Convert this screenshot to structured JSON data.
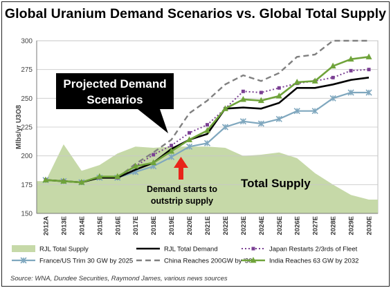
{
  "title": "Global Uranium Demand Scenarios vs. Global Total Supply",
  "source": "Source:  WNA, Dundee Securities, Raymond James, various news sources",
  "colors": {
    "supply_fill": "#c6d9a8",
    "demand": "#000000",
    "japan": "#7a3f93",
    "france": "#7fa7be",
    "china": "#808080",
    "india": "#6fa33a",
    "arrow": "#e8251a",
    "total_supply_label": "#3a8a1c",
    "callout_bg": "#000000"
  },
  "chart_data": {
    "type": "line",
    "title": "Global Uranium Demand Scenarios vs. Global Total Supply",
    "xlabel": "",
    "ylabel": "Mlbs/yr U3O8",
    "ylim": [
      150,
      300
    ],
    "yticks": [
      150,
      175,
      200,
      225,
      250,
      275,
      300
    ],
    "grid": "horizontal",
    "legend_position": "bottom",
    "categories": [
      "2012A",
      "2013E",
      "2014E",
      "2015E",
      "2016E",
      "2017E",
      "2018E",
      "2019E",
      "2020E",
      "2021E",
      "2022E",
      "2023E",
      "2024E",
      "2025E",
      "2026E",
      "2027E",
      "2028E",
      "2029E",
      "2030E"
    ],
    "series": [
      {
        "name": "RJL Total Supply",
        "style": "area",
        "icon": "area-swatch",
        "values": [
          178,
          210,
          187,
          192,
          202,
          208,
          207,
          208,
          208,
          208,
          207,
          200,
          201,
          203,
          198,
          185,
          175,
          166,
          162
        ]
      },
      {
        "name": "RJL Total Demand",
        "style": "solid",
        "icon": "line-swatch",
        "values": [
          179,
          178,
          177,
          181,
          181,
          188,
          194,
          206,
          214,
          219,
          241,
          242,
          241,
          246,
          259,
          259,
          262,
          266,
          268
        ]
      },
      {
        "name": "Japan Restarts 2/3rds of Fleet",
        "style": "dotted-square",
        "icon": "square-marker",
        "values": [
          179,
          178,
          177,
          181,
          181,
          191,
          201,
          209,
          220,
          227,
          241,
          256,
          255,
          259,
          263,
          265,
          268,
          274,
          275
        ]
      },
      {
        "name": "France/US Trim 30 GW by 2025",
        "style": "star",
        "icon": "asterisk-marker",
        "values": [
          179,
          178,
          177,
          181,
          181,
          186,
          191,
          199,
          208,
          211,
          225,
          230,
          228,
          232,
          239,
          239,
          250,
          255,
          255
        ]
      },
      {
        "name": "China Reaches 200GW by '30",
        "style": "dashed",
        "icon": "dash-swatch",
        "values": [
          179,
          178,
          177,
          181,
          181,
          193,
          203,
          214,
          237,
          248,
          262,
          270,
          265,
          272,
          286,
          288,
          300,
          300,
          300
        ]
      },
      {
        "name": "India Reaches 63 GW by 2032",
        "style": "triangle",
        "icon": "triangle-marker",
        "values": [
          179,
          178,
          177,
          182,
          182,
          191,
          194,
          204,
          214,
          222,
          241,
          249,
          248,
          252,
          264,
          265,
          278,
          284,
          286
        ]
      }
    ],
    "annotations": {
      "callout": [
        "Projected Demand",
        "Scenarios"
      ],
      "demand_note": [
        "Demand starts to",
        "outstrip supply"
      ],
      "supply_label": "Total Supply"
    }
  }
}
